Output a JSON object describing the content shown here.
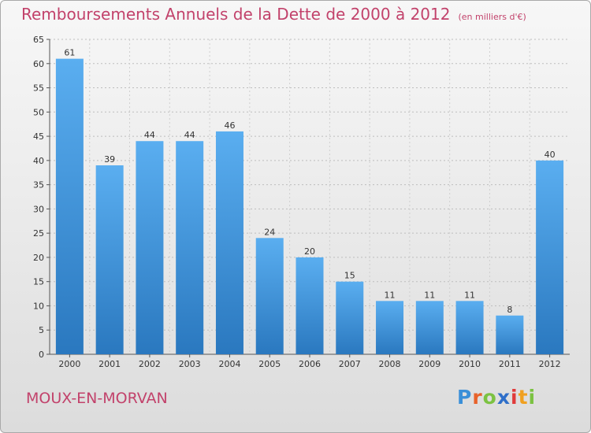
{
  "header": {
    "title": "Remboursements Annuels de la Dette de 2000 à 2012",
    "subtitle": "(en milliers d'€)"
  },
  "footer": {
    "place": "MOUX-EN-MORVAN",
    "logo_letters": [
      "P",
      "r",
      "o",
      "x",
      "i",
      "t",
      "i"
    ]
  },
  "colors": {
    "title": "#c2426b",
    "bar_top": "#5aaef0",
    "bar_bottom": "#2a78bf"
  },
  "chart_data": {
    "type": "bar",
    "title": "Remboursements Annuels de la Dette de 2000 à 2012",
    "subtitle": "(en milliers d'€)",
    "categories": [
      "2000",
      "2001",
      "2002",
      "2003",
      "2004",
      "2005",
      "2006",
      "2007",
      "2008",
      "2009",
      "2010",
      "2011",
      "2012"
    ],
    "values": [
      61,
      39,
      44,
      44,
      46,
      24,
      20,
      15,
      11,
      11,
      11,
      8,
      40
    ],
    "ylim": [
      0,
      65
    ],
    "yticks": [
      0,
      5,
      10,
      15,
      20,
      25,
      30,
      35,
      40,
      45,
      50,
      55,
      60,
      65
    ],
    "grid": true,
    "legend": "none"
  }
}
